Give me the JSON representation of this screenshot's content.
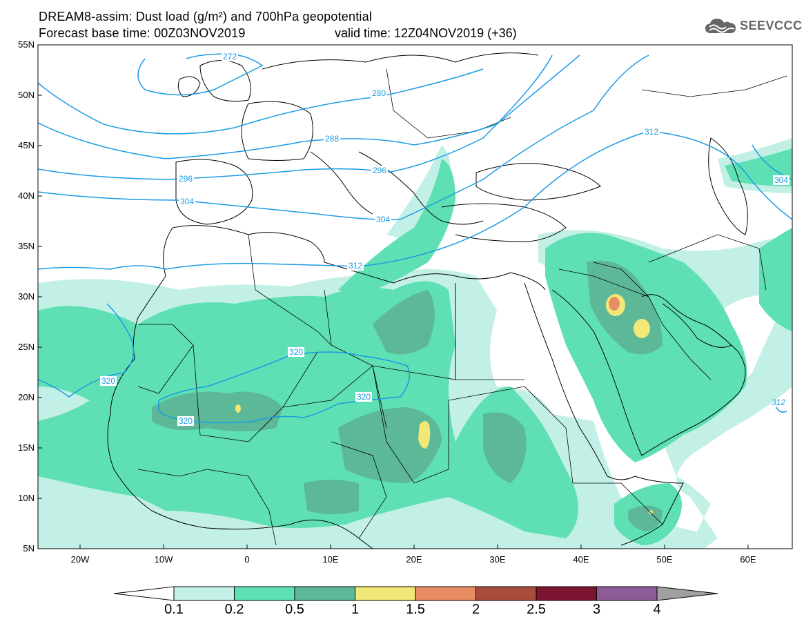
{
  "header": {
    "title_line1": "DREAM8-assim: Dust load (g/m²) and 700hPa geopotential",
    "title_line2": "Forecast base time: 00Z03NOV2019",
    "valid_time": "valid time: 12Z04NOV2019 (+36)",
    "logo_text": "SEEVCCC"
  },
  "map": {
    "lon_range": [
      -25,
      65
    ],
    "lat_range": [
      5,
      55
    ],
    "lat_ticks": [
      "55N",
      "50N",
      "45N",
      "40N",
      "35N",
      "30N",
      "25N",
      "20N",
      "15N",
      "10N",
      "5N"
    ],
    "lon_ticks": [
      "20W",
      "10W",
      "0",
      "10E",
      "20E",
      "30E",
      "40E",
      "50E",
      "60E"
    ],
    "contour_labels": [
      "272",
      "280",
      "288",
      "296",
      "296",
      "304",
      "304",
      "312",
      "312",
      "320",
      "320",
      "320",
      "320",
      "312",
      "304"
    ],
    "colors": {
      "contour": "#1a9be6",
      "land_outline": "#000000",
      "frame": "#000000"
    }
  },
  "colorbar": {
    "tick_labels": [
      "0.1",
      "0.2",
      "0.5",
      "1",
      "1.5",
      "2",
      "2.5",
      "3",
      "4"
    ],
    "colors": [
      "#c2f0e6",
      "#5ee0b4",
      "#5cb896",
      "#f2e878",
      "#e88c64",
      "#a84c3c",
      "#7a1430",
      "#8c5c98",
      "#a0a0a0"
    ]
  }
}
